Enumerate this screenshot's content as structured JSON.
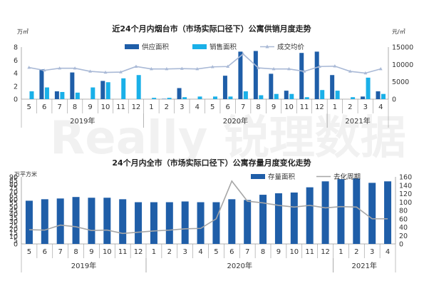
{
  "watermark": "Really 锐理数据",
  "chart_data": [
    {
      "type": "bar",
      "title": "近24个月内烟台市（市场实际口径下）公寓供销月度走势",
      "y_left_unit": "万㎡",
      "y_right_unit": "元/㎡",
      "categories": [
        "5",
        "6",
        "7",
        "8",
        "9",
        "10",
        "11",
        "12",
        "1",
        "2",
        "3",
        "4",
        "5",
        "6",
        "7",
        "8",
        "9",
        "10",
        "11",
        "12",
        "1",
        "2",
        "3",
        "4"
      ],
      "year_groups": [
        {
          "label": "2019年",
          "start": 0,
          "end": 7
        },
        {
          "label": "2020年",
          "start": 8,
          "end": 19
        },
        {
          "label": "2021年",
          "start": 20,
          "end": 23
        }
      ],
      "ylim_left": [
        0,
        8
      ],
      "yticks_left": [
        0,
        2,
        4,
        6,
        8
      ],
      "ylim_right": [
        0,
        15000
      ],
      "yticks_right": [
        0,
        5000,
        10000,
        15000
      ],
      "series": [
        {
          "name": "供应面积",
          "kind": "bar",
          "axis": "left",
          "color": "#1f5ea8",
          "values": [
            0.0,
            4.6,
            1.2,
            4.1,
            0.0,
            2.8,
            0.0,
            0.0,
            0.0,
            0.05,
            1.7,
            0.0,
            0.0,
            3.6,
            7.3,
            7.4,
            3.9,
            1.3,
            7.1,
            7.3,
            3.7,
            0.0,
            0.4,
            1.2
          ]
        },
        {
          "name": "销售面积",
          "kind": "bar",
          "axis": "left",
          "color": "#1ab0e8",
          "values": [
            1.2,
            1.8,
            1.1,
            1.0,
            1.8,
            2.6,
            3.2,
            3.7,
            0.2,
            0.2,
            0.3,
            0.4,
            0.4,
            0.4,
            1.2,
            0.6,
            0.8,
            0.8,
            0.3,
            1.4,
            1.3,
            0.3,
            3.3,
            0.8
          ]
        },
        {
          "name": "成交均价",
          "kind": "line",
          "axis": "right",
          "color": "#a9b9d6",
          "values": [
            9100,
            8300,
            8900,
            8900,
            8000,
            7700,
            7800,
            9400,
            8700,
            8700,
            8800,
            8700,
            9300,
            9400,
            13000,
            9000,
            8700,
            8700,
            8000,
            9400,
            9500,
            8000,
            7500,
            8700
          ]
        }
      ]
    },
    {
      "type": "bar",
      "title": "24个月内全市（市场实际口径下）公寓存量月度变化走势",
      "y_left_unit": "万平方米",
      "categories": [
        "5",
        "6",
        "7",
        "8",
        "9",
        "10",
        "11",
        "12",
        "1",
        "2",
        "3",
        "4",
        "5",
        "6",
        "7",
        "8",
        "9",
        "10",
        "11",
        "12",
        "1",
        "2",
        "3",
        "4"
      ],
      "year_groups": [
        {
          "label": "2019年",
          "start": 0,
          "end": 7
        },
        {
          "label": "2020年",
          "start": 8,
          "end": 19
        },
        {
          "label": "2021年",
          "start": 20,
          "end": 23
        }
      ],
      "ylim_left": [
        0,
        90
      ],
      "yticks_left": [
        0,
        5,
        10,
        15,
        20,
        25,
        30,
        35,
        40,
        45,
        50,
        55,
        60,
        65,
        70,
        75,
        80,
        85,
        90
      ],
      "ylim_right": [
        0,
        160
      ],
      "yticks_right": [
        0,
        20,
        40,
        60,
        80,
        100,
        120,
        140,
        160
      ],
      "series": [
        {
          "name": "存量面积",
          "kind": "bar",
          "axis": "left",
          "color": "#1f5ea8",
          "values": [
            58,
            60,
            61,
            63,
            62,
            62,
            60,
            56,
            56,
            56,
            57,
            56,
            56,
            60,
            59,
            66,
            68,
            69,
            76,
            84,
            87,
            88,
            82,
            84
          ]
        },
        {
          "name": "去化周期",
          "kind": "line",
          "axis": "right",
          "color": "#a6a6a6",
          "values": [
            34,
            33,
            45,
            41,
            32,
            33,
            25,
            28,
            31,
            33,
            36,
            37,
            60,
            150,
            102,
            98,
            92,
            88,
            92,
            86,
            89,
            88,
            60,
            60
          ]
        }
      ]
    }
  ]
}
